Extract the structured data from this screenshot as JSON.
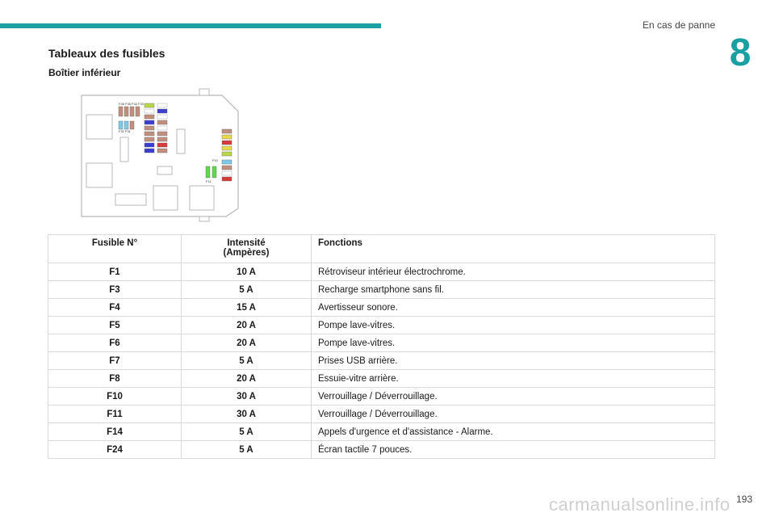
{
  "header": {
    "section_title": "En cas de panne",
    "chapter_number": "8",
    "accent_color": "#1a9fa3"
  },
  "document": {
    "title": "Tableaux des fusibles",
    "subtitle": "Boîtier inférieur"
  },
  "diagram": {
    "labels": {
      "top_group": "F36 F35 F34 F33",
      "left_group": "F32 F31",
      "right_top": "F10",
      "right_bottom": "F11"
    }
  },
  "table": {
    "headers": {
      "fuse": "Fusible N°",
      "current_line1": "Intensité",
      "current_line2": "(Ampères)",
      "functions": "Fonctions"
    },
    "rows": [
      {
        "fuse": "F1",
        "amps": "10 A",
        "function": "Rétroviseur intérieur électrochrome."
      },
      {
        "fuse": "F3",
        "amps": "5 A",
        "function": "Recharge smartphone sans fil."
      },
      {
        "fuse": "F4",
        "amps": "15 A",
        "function": "Avertisseur sonore."
      },
      {
        "fuse": "F5",
        "amps": "20 A",
        "function": "Pompe lave-vitres."
      },
      {
        "fuse": "F6",
        "amps": "20 A",
        "function": "Pompe lave-vitres."
      },
      {
        "fuse": "F7",
        "amps": "5 A",
        "function": "Prises USB arrière."
      },
      {
        "fuse": "F8",
        "amps": "20 A",
        "function": "Essuie-vitre arrière."
      },
      {
        "fuse": "F10",
        "amps": "30 A",
        "function": "Verrouillage / Déverrouillage."
      },
      {
        "fuse": "F11",
        "amps": "30 A",
        "function": "Verrouillage / Déverrouillage."
      },
      {
        "fuse": "F14",
        "amps": "5 A",
        "function": "Appels d'urgence et d'assistance - Alarme."
      },
      {
        "fuse": "F24",
        "amps": "5 A",
        "function": "Écran tactile 7 pouces."
      }
    ]
  },
  "footer": {
    "page_number": "193",
    "watermark": "carmanualsonline.info"
  }
}
